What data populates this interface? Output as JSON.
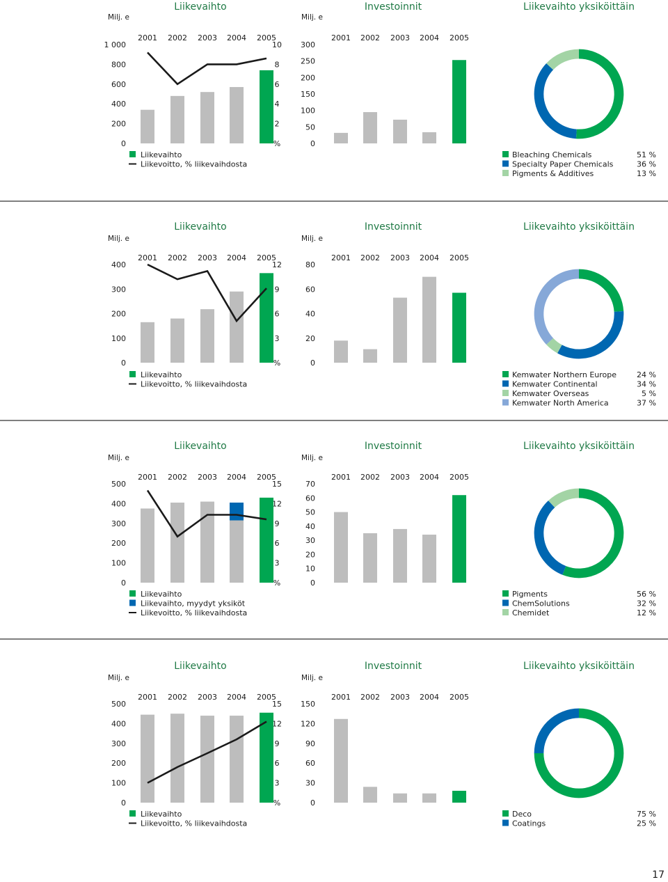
{
  "page_number": "17",
  "colors": {
    "green": "#00a651",
    "gray": "#bdbdbd",
    "blue": "#0067b1",
    "lightgreen": "#a3d4a5",
    "lightblue": "#86a8d8",
    "line": "#1a1a1a",
    "title": "#1f7a45",
    "divider": "#333333"
  },
  "chart_data": [
    {
      "type": "bar",
      "panel": 1,
      "title": "Liikevaihto",
      "unit_left": "Milj. e",
      "unit_right": "%",
      "categories": [
        "2001",
        "2002",
        "2003",
        "2004",
        "2005"
      ],
      "ylim": [
        0,
        1000
      ],
      "y_ticks": [
        "0",
        "200",
        "400",
        "600",
        "800",
        "1 000"
      ],
      "y2lim": [
        0,
        10
      ],
      "y2_ticks": [
        "2",
        "4",
        "6",
        "8",
        "10"
      ],
      "series": [
        {
          "name": "Liikevaihto",
          "type": "bar",
          "values": [
            340,
            480,
            520,
            570,
            740
          ]
        },
        {
          "name": "Liikevoitto, % liikevaihdosta",
          "type": "line",
          "axis": "right",
          "values": [
            9.2,
            6.0,
            8.0,
            8.0,
            8.6
          ]
        }
      ],
      "legend": [
        "Liikevaihto",
        "Liikevoitto, % liikevaihdosta"
      ]
    },
    {
      "type": "bar",
      "panel": 1,
      "title": "Investoinnit",
      "unit_left": "Milj. e",
      "categories": [
        "2001",
        "2002",
        "2003",
        "2004",
        "2005"
      ],
      "ylim": [
        0,
        300
      ],
      "y_ticks": [
        "0",
        "50",
        "100",
        "150",
        "200",
        "250",
        "300"
      ],
      "series": [
        {
          "name": "Investoinnit",
          "values": [
            32,
            95,
            72,
            34,
            253
          ]
        }
      ]
    },
    {
      "type": "pie",
      "panel": 1,
      "title": "Liikevaihto yksiköittäin",
      "slices": [
        {
          "label": "Bleaching Chemicals",
          "value": 51,
          "pct": "51 %",
          "color": "#00a651"
        },
        {
          "label": "Specialty Paper Chemicals",
          "value": 36,
          "pct": "36 %",
          "color": "#0067b1"
        },
        {
          "label": "Pigments & Additives",
          "value": 13,
          "pct": "13 %",
          "color": "#a3d4a5"
        }
      ]
    },
    {
      "type": "bar",
      "panel": 2,
      "title": "Liikevaihto",
      "unit_left": "Milj. e",
      "unit_right": "%",
      "categories": [
        "2001",
        "2002",
        "2003",
        "2004",
        "2005"
      ],
      "ylim": [
        0,
        400
      ],
      "y_ticks": [
        "0",
        "100",
        "200",
        "300",
        "400"
      ],
      "y2lim": [
        0,
        12
      ],
      "y2_ticks": [
        "3",
        "6",
        "9",
        "12"
      ],
      "series": [
        {
          "name": "Liikevaihto",
          "type": "bar",
          "values": [
            165,
            180,
            218,
            290,
            365
          ]
        },
        {
          "name": "Liikevoitto, % liikevaihdosta",
          "type": "line",
          "axis": "right",
          "values": [
            12.0,
            10.2,
            11.2,
            5.1,
            9.1
          ]
        }
      ],
      "legend": [
        "Liikevaihto",
        "Liikevoitto, % liikevaihdosta"
      ]
    },
    {
      "type": "bar",
      "panel": 2,
      "title": "Investoinnit",
      "unit_left": "Milj. e",
      "categories": [
        "2001",
        "2002",
        "2003",
        "2004",
        "2005"
      ],
      "ylim": [
        0,
        80
      ],
      "y_ticks": [
        "0",
        "20",
        "40",
        "60",
        "80"
      ],
      "series": [
        {
          "name": "Investoinnit",
          "values": [
            18,
            11,
            53,
            70,
            57
          ]
        }
      ]
    },
    {
      "type": "pie",
      "panel": 2,
      "title": "Liikevaihto yksiköittäin",
      "slices": [
        {
          "label": "Kemwater Northern Europe",
          "value": 24,
          "pct": "24 %",
          "color": "#00a651"
        },
        {
          "label": "Kemwater Continental",
          "value": 34,
          "pct": "34 %",
          "color": "#0067b1"
        },
        {
          "label": "Kemwater Overseas",
          "value": 5,
          "pct": "5 %",
          "color": "#a3d4a5"
        },
        {
          "label": "Kemwater North America",
          "value": 37,
          "pct": "37 %",
          "color": "#86a8d8"
        }
      ]
    },
    {
      "type": "bar",
      "panel": 3,
      "title": "Liikevaihto",
      "unit_left": "Milj. e",
      "unit_right": "%",
      "categories": [
        "2001",
        "2002",
        "2003",
        "2004",
        "2005"
      ],
      "ylim": [
        0,
        500
      ],
      "y_ticks": [
        "0",
        "100",
        "200",
        "300",
        "400",
        "500"
      ],
      "y2lim": [
        0,
        15
      ],
      "y2_ticks": [
        "3",
        "6",
        "9",
        "12",
        "15"
      ],
      "series": [
        {
          "name": "Liikevaihto",
          "type": "bar",
          "values": [
            375,
            405,
            410,
            315,
            430
          ]
        },
        {
          "name": "Liikevaihto, myydyt yksiköt",
          "type": "bar_stack",
          "values": [
            0,
            0,
            0,
            90,
            0
          ]
        },
        {
          "name": "Liikevoitto, % liikevaihdosta",
          "type": "line",
          "axis": "right",
          "values": [
            14.0,
            7.0,
            10.3,
            10.3,
            9.6
          ]
        }
      ],
      "legend": [
        "Liikevaihto",
        "Liikevaihto, myydyt yksiköt",
        "Liikevoitto, % liikevaihdosta"
      ]
    },
    {
      "type": "bar",
      "panel": 3,
      "title": "Investoinnit",
      "unit_left": "Milj. e",
      "categories": [
        "2001",
        "2002",
        "2003",
        "2004",
        "2005"
      ],
      "ylim": [
        0,
        70
      ],
      "y_ticks": [
        "0",
        "10",
        "20",
        "30",
        "40",
        "50",
        "60",
        "70"
      ],
      "series": [
        {
          "name": "Investoinnit",
          "values": [
            50,
            35,
            38,
            34,
            62
          ]
        }
      ]
    },
    {
      "type": "pie",
      "panel": 3,
      "title": "Liikevaihto yksiköittäin",
      "slices": [
        {
          "label": "Pigments",
          "value": 56,
          "pct": "56 %",
          "color": "#00a651"
        },
        {
          "label": "ChemSolutions",
          "value": 32,
          "pct": "32 %",
          "color": "#0067b1"
        },
        {
          "label": "Chemidet",
          "value": 12,
          "pct": "12 %",
          "color": "#a3d4a5"
        }
      ]
    },
    {
      "type": "bar",
      "panel": 4,
      "title": "Liikevaihto",
      "unit_left": "Milj. e",
      "unit_right": "%",
      "categories": [
        "2001",
        "2002",
        "2003",
        "2004",
        "2005"
      ],
      "ylim": [
        0,
        500
      ],
      "y_ticks": [
        "0",
        "100",
        "200",
        "300",
        "400",
        "500"
      ],
      "y2lim": [
        0,
        15
      ],
      "y2_ticks": [
        "3",
        "6",
        "9",
        "12",
        "15"
      ],
      "series": [
        {
          "name": "Liikevaihto",
          "type": "bar",
          "values": [
            445,
            450,
            440,
            440,
            455
          ]
        },
        {
          "name": "Liikevoitto, % liikevaihdosta",
          "type": "line",
          "axis": "right",
          "values": [
            3.0,
            5.4,
            7.5,
            9.6,
            12.3
          ]
        }
      ],
      "legend": [
        "Liikevaihto",
        "Liikevoitto, % liikevaihdosta"
      ]
    },
    {
      "type": "bar",
      "panel": 4,
      "title": "Investoinnit",
      "unit_left": "Milj. e",
      "categories": [
        "2001",
        "2002",
        "2003",
        "2004",
        "2005"
      ],
      "ylim": [
        0,
        150
      ],
      "y_ticks": [
        "0",
        "30",
        "60",
        "90",
        "120",
        "150"
      ],
      "series": [
        {
          "name": "Investoinnit",
          "values": [
            127,
            24,
            14,
            14,
            18
          ]
        }
      ]
    },
    {
      "type": "pie",
      "panel": 4,
      "title": "Liikevaihto yksiköittäin",
      "slices": [
        {
          "label": "Deco",
          "value": 75,
          "pct": "75 %",
          "color": "#00a651"
        },
        {
          "label": "Coatings",
          "value": 25,
          "pct": "25 %",
          "color": "#0067b1"
        }
      ]
    }
  ]
}
